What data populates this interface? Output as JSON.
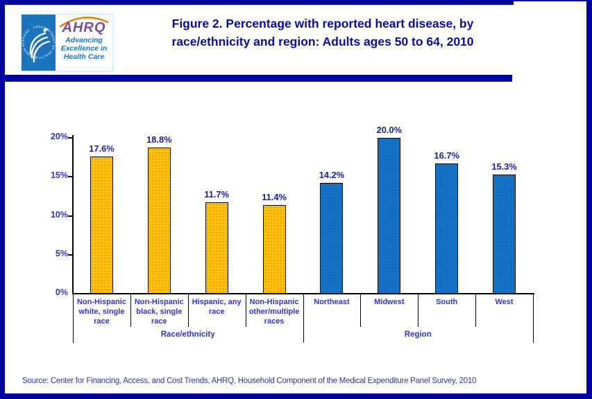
{
  "page": {
    "background": "#FFFFFF",
    "border_color": "#0101A0"
  },
  "header": {
    "logo": {
      "hhs": {
        "background_color": "#1C75BC",
        "circle_text": "DEPARTMENT OF HEALTH & HUMAN SERVICES · USA"
      },
      "ahrq": {
        "acronym": "AHRQ",
        "acronym_color": "#7C4C9B",
        "swoosh_color": "#E8820C",
        "tagline_color": "#1C75BC",
        "tagline_lines": [
          "Advancing",
          "Excellence in",
          "Health Care"
        ]
      }
    },
    "title": "Figure 2. Percentage with reported heart disease, by race/ethnicity and region: Adults ages 50 to 64, 2010",
    "title_color": "#0B0B9D",
    "divider_color": "#0101A0"
  },
  "chart_data": {
    "type": "bar",
    "title": "Figure 2. Percentage with reported heart disease, by race/ethnicity and region: Adults ages 50 to 64, 2010",
    "xlabel": "",
    "ylabel": "",
    "ylim": [
      0,
      20
    ],
    "grid": false,
    "legend": "none",
    "yticks": [
      {
        "label": "0%",
        "value": 0
      },
      {
        "label": "5%",
        "value": 5
      },
      {
        "label": "10%",
        "value": 10
      },
      {
        "label": "15%",
        "value": 15
      },
      {
        "label": "20%",
        "value": 20
      }
    ],
    "axis_label_color": "#3333CC",
    "value_label_color": "#1D1D99",
    "groups": [
      {
        "label": "Race/ethnicity",
        "bar_color": "#FFC10D",
        "pattern_dot_color": "#D98E00",
        "categories": [
          "Non-Hispanic white, single race",
          "Non-Hispanic black, single race",
          "Hispanic, any race",
          "Non-Hispanic other/multiple races"
        ],
        "values": [
          17.6,
          18.8,
          11.7,
          11.4
        ],
        "value_labels": [
          "17.6%",
          "18.8%",
          "11.7%",
          "11.4%"
        ]
      },
      {
        "label": "Region",
        "bar_color": "#1473C6",
        "pattern_dot_color": "#0E62AB",
        "categories": [
          "Northeast",
          "Midwest",
          "South",
          "West"
        ],
        "values": [
          14.2,
          20.0,
          16.7,
          15.3
        ],
        "value_labels": [
          "14.2%",
          "20.0%",
          "16.7%",
          "15.3%"
        ]
      }
    ]
  },
  "footer": {
    "source": "Source: Center for Financing, Access, and Cost Trends, AHRQ, Household Component of the Medical Expenditure Panel Survey, 2010",
    "source_color": "#33339F"
  }
}
